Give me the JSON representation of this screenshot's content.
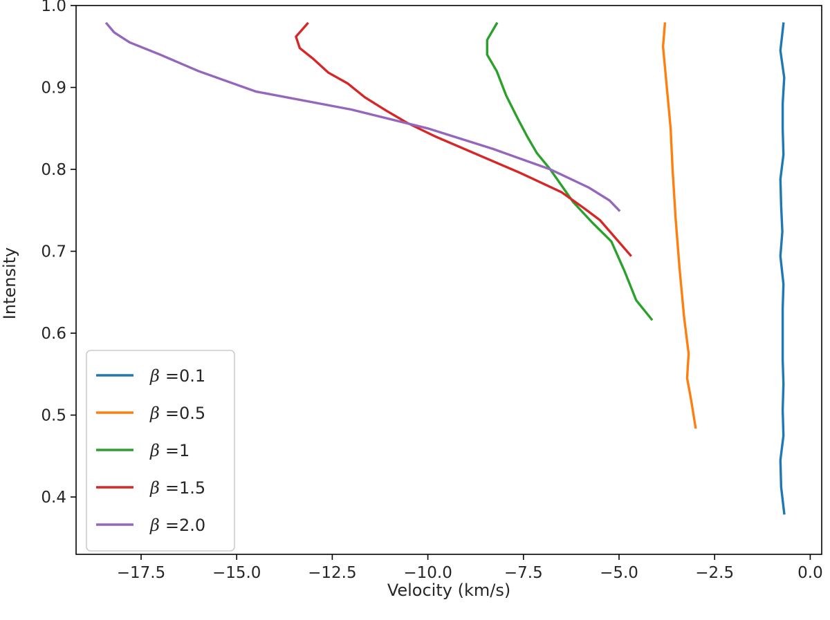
{
  "chart_data": {
    "type": "line",
    "title": "",
    "xlabel": "Velocity (km/s)",
    "ylabel": "Intensity",
    "xlim": [
      -19.2,
      0.3
    ],
    "ylim": [
      0.33,
      1.0
    ],
    "xticks": [
      -17.5,
      -15.0,
      -12.5,
      -10.0,
      -7.5,
      -5.0,
      -2.5,
      0.0
    ],
    "xtick_labels": [
      "−17.5",
      "−15.0",
      "−12.5",
      "−10.0",
      "−7.5",
      "−5.0",
      "−2.5",
      "0.0"
    ],
    "yticks": [
      0.4,
      0.5,
      0.6,
      0.7,
      0.8,
      0.9,
      1.0
    ],
    "ytick_labels": [
      "0.4",
      "0.5",
      "0.6",
      "0.7",
      "0.8",
      "0.9",
      "1.0"
    ],
    "grid": false,
    "legend_position": "lower-left",
    "series": [
      {
        "name": "β =0.1",
        "symbol": "β",
        "value_label": "=0.1",
        "color": "#1f77b4",
        "points": [
          [
            -0.7,
            0.978
          ],
          [
            -0.78,
            0.945
          ],
          [
            -0.68,
            0.912
          ],
          [
            -0.72,
            0.88
          ],
          [
            -0.72,
            0.85
          ],
          [
            -0.7,
            0.818
          ],
          [
            -0.78,
            0.788
          ],
          [
            -0.76,
            0.755
          ],
          [
            -0.73,
            0.724
          ],
          [
            -0.78,
            0.694
          ],
          [
            -0.7,
            0.66
          ],
          [
            -0.72,
            0.63
          ],
          [
            -0.72,
            0.6
          ],
          [
            -0.72,
            0.568
          ],
          [
            -0.7,
            0.538
          ],
          [
            -0.72,
            0.506
          ],
          [
            -0.7,
            0.475
          ],
          [
            -0.78,
            0.445
          ],
          [
            -0.76,
            0.412
          ],
          [
            -0.68,
            0.38
          ]
        ]
      },
      {
        "name": "β =0.5",
        "symbol": "β",
        "value_label": "=0.5",
        "color": "#ff7f0e",
        "points": [
          [
            -3.8,
            0.978
          ],
          [
            -3.85,
            0.95
          ],
          [
            -3.75,
            0.9
          ],
          [
            -3.65,
            0.85
          ],
          [
            -3.6,
            0.8
          ],
          [
            -3.52,
            0.74
          ],
          [
            -3.42,
            0.68
          ],
          [
            -3.3,
            0.62
          ],
          [
            -3.18,
            0.575
          ],
          [
            -3.22,
            0.545
          ],
          [
            -3.12,
            0.52
          ],
          [
            -3.0,
            0.485
          ]
        ]
      },
      {
        "name": "β =1",
        "symbol": "β",
        "value_label": "=1",
        "color": "#2ca02c",
        "points": [
          [
            -8.2,
            0.978
          ],
          [
            -8.45,
            0.958
          ],
          [
            -8.45,
            0.94
          ],
          [
            -8.2,
            0.92
          ],
          [
            -7.95,
            0.89
          ],
          [
            -7.65,
            0.862
          ],
          [
            -7.4,
            0.84
          ],
          [
            -7.15,
            0.82
          ],
          [
            -6.8,
            0.8
          ],
          [
            -6.2,
            0.76
          ],
          [
            -5.7,
            0.735
          ],
          [
            -5.2,
            0.712
          ],
          [
            -4.85,
            0.675
          ],
          [
            -4.55,
            0.64
          ],
          [
            -4.15,
            0.617
          ]
        ]
      },
      {
        "name": "β =1.5",
        "symbol": "β",
        "value_label": "=1.5",
        "color": "#d62728",
        "points": [
          [
            -13.15,
            0.978
          ],
          [
            -13.45,
            0.962
          ],
          [
            -13.35,
            0.948
          ],
          [
            -13.0,
            0.935
          ],
          [
            -12.6,
            0.918
          ],
          [
            -12.1,
            0.905
          ],
          [
            -11.65,
            0.888
          ],
          [
            -11.1,
            0.872
          ],
          [
            -10.55,
            0.857
          ],
          [
            -9.8,
            0.84
          ],
          [
            -8.8,
            0.82
          ],
          [
            -7.6,
            0.796
          ],
          [
            -6.5,
            0.772
          ],
          [
            -5.9,
            0.752
          ],
          [
            -5.5,
            0.738
          ],
          [
            -4.7,
            0.695
          ]
        ]
      },
      {
        "name": "β =2.0",
        "symbol": "β",
        "value_label": "=2.0",
        "color": "#9467bd",
        "points": [
          [
            -18.4,
            0.978
          ],
          [
            -18.2,
            0.967
          ],
          [
            -17.8,
            0.955
          ],
          [
            -17.0,
            0.94
          ],
          [
            -16.0,
            0.92
          ],
          [
            -14.5,
            0.895
          ],
          [
            -12.0,
            0.873
          ],
          [
            -10.0,
            0.85
          ],
          [
            -8.3,
            0.825
          ],
          [
            -6.8,
            0.8
          ],
          [
            -5.8,
            0.778
          ],
          [
            -5.25,
            0.762
          ],
          [
            -5.0,
            0.75
          ]
        ]
      }
    ]
  }
}
